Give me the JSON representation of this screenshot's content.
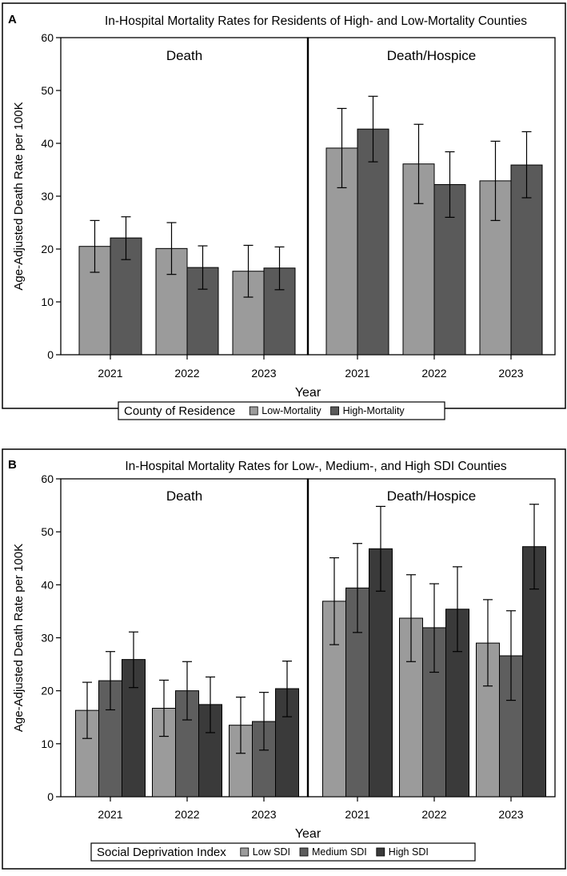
{
  "colors": {
    "low": "#9b9b9b",
    "medium": "#5e5e5e",
    "high": "#3a3a3a",
    "high_mortality": "#5a5a5a",
    "frame": "#000000"
  },
  "chart_data": [
    {
      "type": "bar",
      "panel_letter": "A",
      "title": "In-Hospital Mortality Rates for Residents of High- and Low-Mortality Counties",
      "ylabel": "Age-Adjusted Death Rate per 100K",
      "xlabel": "Year",
      "ylim": [
        0,
        60
      ],
      "yticks": [
        0,
        10,
        20,
        30,
        40,
        50,
        60
      ],
      "categories": [
        "2021",
        "2022",
        "2023"
      ],
      "legend_title": "County of Residence",
      "facets": [
        {
          "label": "Death",
          "series": [
            {
              "name": "Low-Mortality",
              "color_key": "low",
              "values": [
                20.5,
                20.1,
                15.8
              ],
              "lower": [
                15.6,
                15.2,
                10.9
              ],
              "upper": [
                25.4,
                25.0,
                20.7
              ]
            },
            {
              "name": "High-Mortality",
              "color_key": "high_mortality",
              "values": [
                22.1,
                16.5,
                16.4
              ],
              "lower": [
                18.0,
                12.4,
                12.3
              ],
              "upper": [
                26.1,
                20.6,
                20.4
              ]
            }
          ]
        },
        {
          "label": "Death/Hospice",
          "series": [
            {
              "name": "Low-Mortality",
              "color_key": "low",
              "values": [
                39.1,
                36.1,
                32.9
              ],
              "lower": [
                31.6,
                28.6,
                25.4
              ],
              "upper": [
                46.6,
                43.6,
                40.4
              ]
            },
            {
              "name": "High-Mortality",
              "color_key": "high_mortality",
              "values": [
                42.7,
                32.2,
                35.9
              ],
              "lower": [
                36.5,
                26.0,
                29.7
              ],
              "upper": [
                48.9,
                38.4,
                42.2
              ]
            }
          ]
        }
      ],
      "legend": [
        {
          "name": "Low-Mortality",
          "color_key": "low"
        },
        {
          "name": "High-Mortality",
          "color_key": "high_mortality"
        }
      ]
    },
    {
      "type": "bar",
      "panel_letter": "B",
      "title": "In-Hospital Mortality Rates for Low-, Medium-, and High SDI Counties",
      "ylabel": "Age-Adjusted Death Rate per 100K",
      "xlabel": "Year",
      "ylim": [
        0,
        60
      ],
      "yticks": [
        0,
        10,
        20,
        30,
        40,
        50,
        60
      ],
      "categories": [
        "2021",
        "2022",
        "2023"
      ],
      "legend_title": "Social Deprivation Index",
      "facets": [
        {
          "label": "Death",
          "series": [
            {
              "name": "Low SDI",
              "color_key": "low",
              "values": [
                16.3,
                16.7,
                13.5
              ],
              "lower": [
                11.0,
                11.4,
                8.2
              ],
              "upper": [
                21.6,
                22.0,
                18.8
              ]
            },
            {
              "name": "Medium SDI",
              "color_key": "medium",
              "values": [
                21.9,
                20.0,
                14.2
              ],
              "lower": [
                16.4,
                14.5,
                8.8
              ],
              "upper": [
                27.4,
                25.5,
                19.7
              ]
            },
            {
              "name": "High SDI",
              "color_key": "high",
              "values": [
                25.9,
                17.4,
                20.4
              ],
              "lower": [
                20.6,
                12.1,
                15.1
              ],
              "upper": [
                31.1,
                22.6,
                25.6
              ]
            }
          ]
        },
        {
          "label": "Death/Hospice",
          "series": [
            {
              "name": "Low SDI",
              "color_key": "low",
              "values": [
                36.9,
                33.7,
                29.0
              ],
              "lower": [
                28.7,
                25.5,
                20.9
              ],
              "upper": [
                45.1,
                41.9,
                37.2
              ]
            },
            {
              "name": "Medium SDI",
              "color_key": "medium",
              "values": [
                39.4,
                31.9,
                26.6
              ],
              "lower": [
                31.0,
                23.5,
                18.2
              ],
              "upper": [
                47.8,
                40.2,
                35.1
              ]
            },
            {
              "name": "High SDI",
              "color_key": "high",
              "values": [
                46.8,
                35.4,
                47.2
              ],
              "lower": [
                38.8,
                27.4,
                39.2
              ],
              "upper": [
                54.8,
                43.4,
                55.2
              ]
            }
          ]
        }
      ],
      "legend": [
        {
          "name": "Low SDI",
          "color_key": "low"
        },
        {
          "name": "Medium SDI",
          "color_key": "medium"
        },
        {
          "name": "High SDI",
          "color_key": "high"
        }
      ]
    }
  ]
}
